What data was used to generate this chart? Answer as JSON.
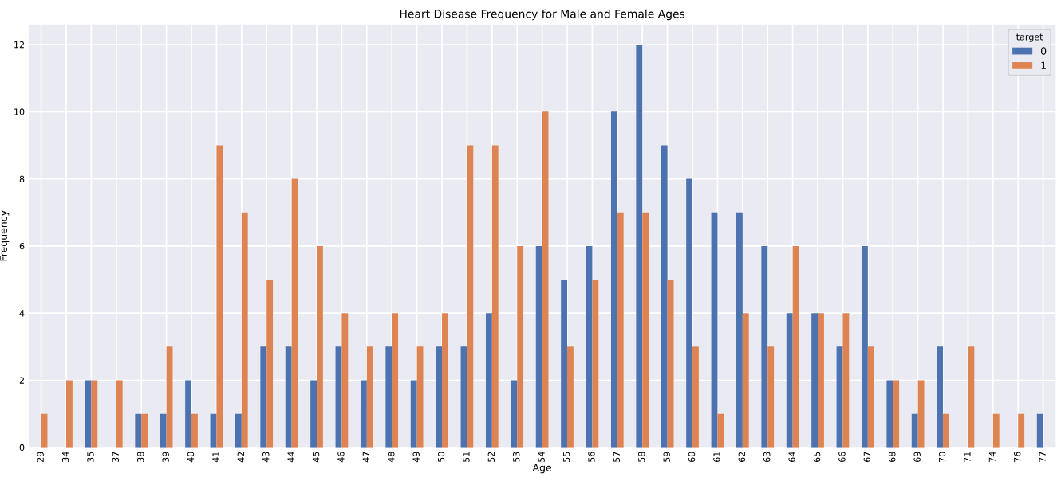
{
  "chart_data": {
    "type": "bar",
    "title": "Heart Disease Frequency for Male and Female Ages",
    "xlabel": "Age",
    "ylabel": "Frequency",
    "legend_title": "target",
    "categories": [
      "29",
      "34",
      "35",
      "37",
      "38",
      "39",
      "40",
      "41",
      "42",
      "43",
      "44",
      "45",
      "46",
      "47",
      "48",
      "49",
      "50",
      "51",
      "52",
      "53",
      "54",
      "55",
      "56",
      "57",
      "58",
      "59",
      "60",
      "61",
      "62",
      "63",
      "64",
      "65",
      "66",
      "67",
      "68",
      "69",
      "70",
      "71",
      "74",
      "76",
      "77"
    ],
    "series": [
      {
        "name": "0",
        "color": "#4c72b0",
        "values": [
          0,
          0,
          2,
          0,
          1,
          1,
          2,
          1,
          1,
          3,
          3,
          2,
          3,
          2,
          3,
          2,
          3,
          3,
          4,
          2,
          6,
          5,
          6,
          10,
          12,
          9,
          8,
          7,
          7,
          6,
          4,
          4,
          3,
          6,
          2,
          1,
          3,
          0,
          0,
          0,
          1
        ]
      },
      {
        "name": "1",
        "color": "#dd8452",
        "values": [
          1,
          2,
          2,
          2,
          1,
          3,
          1,
          9,
          7,
          5,
          8,
          6,
          4,
          3,
          4,
          3,
          4,
          9,
          9,
          6,
          10,
          3,
          5,
          7,
          7,
          5,
          3,
          1,
          4,
          3,
          6,
          4,
          4,
          3,
          2,
          2,
          1,
          3,
          1,
          1,
          0
        ]
      }
    ],
    "ylim": [
      0,
      12.6
    ],
    "yticks": [
      0,
      2,
      4,
      6,
      8,
      10,
      12
    ],
    "grid": true,
    "legend": "top right"
  }
}
